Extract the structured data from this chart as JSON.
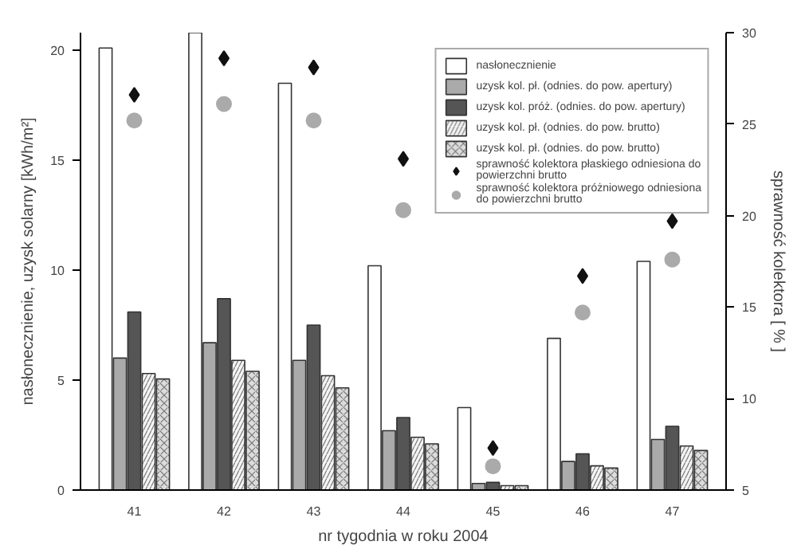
{
  "chart_data": {
    "type": "bar",
    "xlabel": "nr tygodnia w roku 2004",
    "ylabel": "nasłonecznienie, uzysk solarny [kWh/m²]",
    "y2label": "sprawność kolektora [ % ]",
    "categories": [
      "41",
      "42",
      "43",
      "44",
      "45",
      "46",
      "47"
    ],
    "ylim": [
      0,
      20.8
    ],
    "yticks": [
      0,
      5,
      10,
      15,
      20
    ],
    "y2lim": [
      5,
      30
    ],
    "y2ticks": [
      5,
      10,
      15,
      20,
      25,
      30
    ],
    "legend": "top right",
    "grid": false,
    "series": [
      {
        "name": "nasłonecznienie",
        "color": "#ffffff",
        "values": [
          20.1,
          20.8,
          18.5,
          10.2,
          3.75,
          6.9,
          10.4
        ]
      },
      {
        "name": "uzysk kol. pł. (odnies. do pow. apertury)",
        "color": "#aaaaaa",
        "values": [
          6.0,
          6.7,
          5.9,
          2.7,
          0.3,
          1.3,
          2.3
        ]
      },
      {
        "name": "uzysk kol. próż. (odnies. do pow. apertury)",
        "color": "#555555",
        "values": [
          8.1,
          8.7,
          7.5,
          3.3,
          0.35,
          1.65,
          2.9
        ]
      },
      {
        "name": "uzysk kol. pł. (odnies. do pow. brutto)",
        "color": "#f4f4f4",
        "values": [
          5.3,
          5.9,
          5.2,
          2.4,
          0.2,
          1.1,
          2.0
        ]
      },
      {
        "name": "uzysk kol. pł. (odnies. do pow. brutto)",
        "color": "#dcdcdc",
        "values": [
          5.05,
          5.4,
          4.65,
          2.1,
          0.2,
          1.0,
          1.8
        ]
      },
      {
        "name": "sprawność kolektora płaskiego odniesiona do powierzchni brutto",
        "type": "scatter",
        "axis": "y2",
        "marker": "diamond",
        "color": "#111111",
        "values": [
          26.6,
          28.6,
          28.1,
          23.1,
          7.3,
          16.7,
          19.7
        ]
      },
      {
        "name": "sprawność kolektora próżniowego odniesiona do powierzchni brutto",
        "type": "scatter",
        "axis": "y2",
        "marker": "circle",
        "color": "#aaaaaa",
        "values": [
          25.2,
          26.1,
          25.2,
          20.3,
          6.3,
          14.7,
          17.6
        ]
      }
    ]
  }
}
